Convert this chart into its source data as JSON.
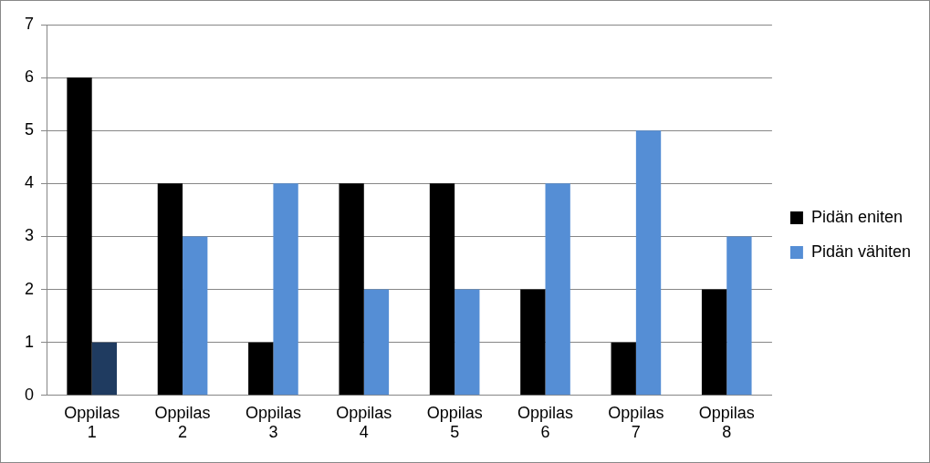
{
  "chart_data": {
    "type": "bar",
    "categories": [
      "Oppilas 1",
      "Oppilas 2",
      "Oppilas 3",
      "Oppilas 4",
      "Oppilas 5",
      "Oppilas 6",
      "Oppilas 7",
      "Oppilas 8"
    ],
    "series": [
      {
        "name": "Pidän eniten",
        "color": "#000000",
        "values": [
          6,
          4,
          1,
          4,
          4,
          2,
          1,
          2
        ]
      },
      {
        "name": "Pidän vähiten",
        "color": "#558ed5",
        "colors": [
          "#1f3b60",
          "#558ed5",
          "#558ed5",
          "#558ed5",
          "#558ed5",
          "#558ed5",
          "#558ed5",
          "#558ed5"
        ],
        "values": [
          1,
          3,
          4,
          2,
          2,
          4,
          5,
          3
        ]
      }
    ],
    "ylim": [
      0,
      7
    ],
    "yticks": [
      0,
      1,
      2,
      3,
      4,
      5,
      6,
      7
    ],
    "grid": "y",
    "legend": "right"
  }
}
